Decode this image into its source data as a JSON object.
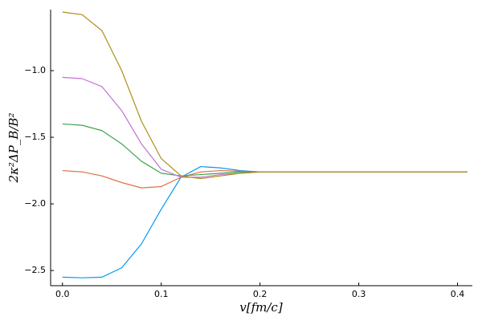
{
  "chart_data": {
    "type": "line",
    "xlabel": "v[fm/c]",
    "ylabel": "2κ²ΔP_B/B²",
    "x": [
      0,
      0.02,
      0.04,
      0.06,
      0.08,
      0.1,
      0.12,
      0.14,
      0.16,
      0.18,
      0.2,
      0.25,
      0.3,
      0.35,
      0.4,
      0.41
    ],
    "series": [
      {
        "color": "#009afa",
        "values": [
          -2.55,
          -2.555,
          -2.55,
          -2.48,
          -2.3,
          -2.04,
          -1.8,
          -1.72,
          -1.73,
          -1.75,
          -1.76,
          -1.76,
          -1.76,
          -1.76,
          -1.76,
          -1.76
        ]
      },
      {
        "color": "#e36f47",
        "values": [
          -1.75,
          -1.76,
          -1.79,
          -1.84,
          -1.88,
          -1.87,
          -1.8,
          -1.76,
          -1.75,
          -1.755,
          -1.76,
          -1.76,
          -1.76,
          -1.76,
          -1.76,
          -1.76
        ]
      },
      {
        "color": "#3ea44e",
        "values": [
          -1.4,
          -1.41,
          -1.45,
          -1.55,
          -1.68,
          -1.77,
          -1.79,
          -1.78,
          -1.77,
          -1.76,
          -1.76,
          -1.76,
          -1.76,
          -1.76,
          -1.76,
          -1.76
        ]
      },
      {
        "color": "#c371d2",
        "values": [
          -1.05,
          -1.06,
          -1.12,
          -1.3,
          -1.55,
          -1.74,
          -1.8,
          -1.8,
          -1.78,
          -1.77,
          -1.76,
          -1.76,
          -1.76,
          -1.76,
          -1.76,
          -1.76
        ]
      },
      {
        "color": "#ac8e18",
        "values": [
          -0.56,
          -0.58,
          -0.7,
          -1.0,
          -1.38,
          -1.66,
          -1.79,
          -1.81,
          -1.79,
          -1.77,
          -1.76,
          -1.76,
          -1.76,
          -1.76,
          -1.76,
          -1.76
        ]
      }
    ],
    "xlim": [
      -0.012,
      0.415
    ],
    "ylim": [
      -2.614,
      -0.542
    ],
    "xticks": [
      {
        "value": 0,
        "label": "0.0"
      },
      0.1,
      0.2,
      0.3,
      0.4
    ],
    "yticks": [
      {
        "value": -2.5,
        "label": "−2.5"
      },
      {
        "value": -2.0,
        "label": "−2.0"
      },
      {
        "value": -1.5,
        "label": "−1.5"
      },
      {
        "value": -1.0,
        "label": "−1.0"
      }
    ],
    "grid": false
  }
}
